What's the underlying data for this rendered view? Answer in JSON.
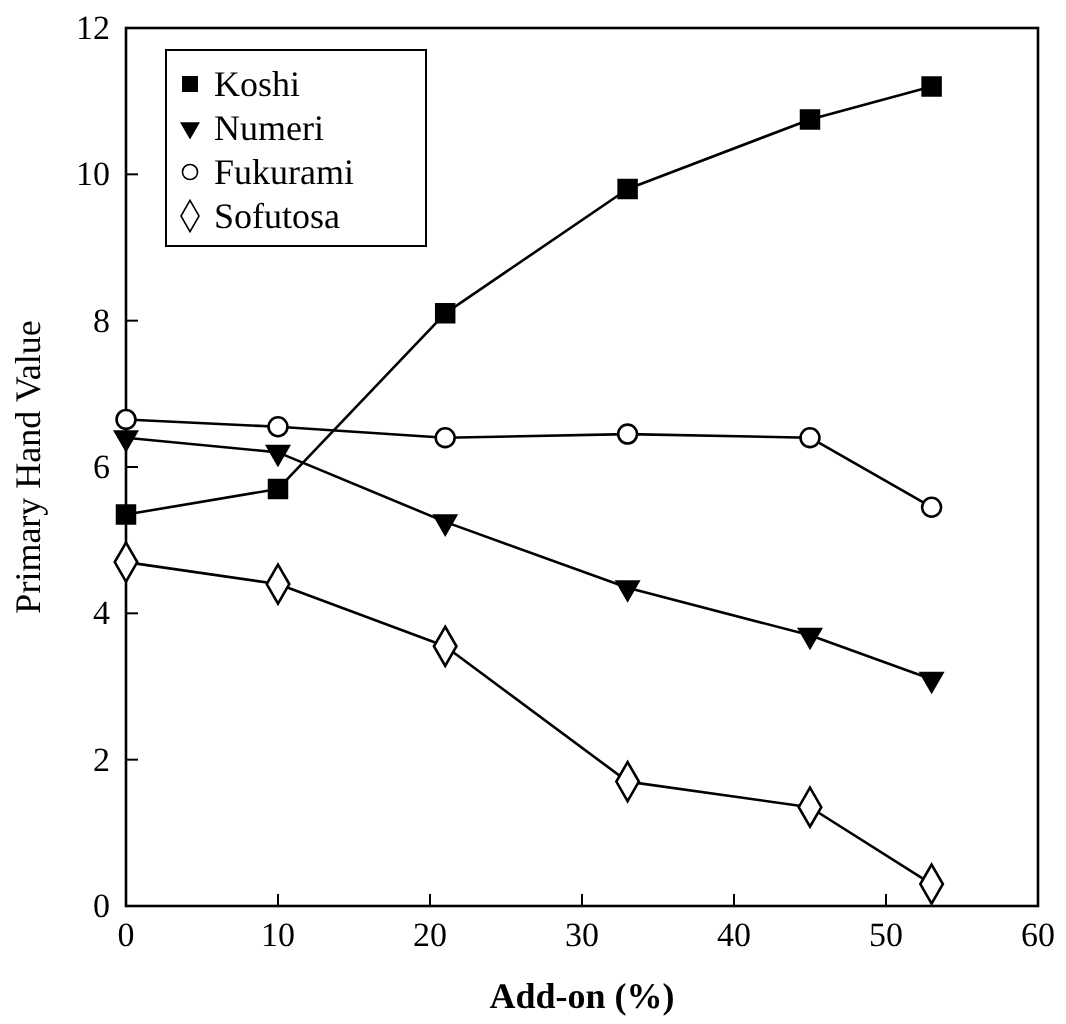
{
  "chart_data": {
    "type": "line",
    "xlabel": "Add-on (%)",
    "ylabel": "Primary Hand Value",
    "x": [
      0,
      10,
      21,
      33,
      45,
      53
    ],
    "xlim": [
      0,
      60
    ],
    "xticks": [
      0,
      10,
      20,
      30,
      40,
      50,
      60
    ],
    "ylim": [
      0,
      12
    ],
    "yticks": [
      0,
      2,
      4,
      6,
      8,
      10,
      12
    ],
    "legend": "top left",
    "grid": false,
    "line_style": "solid",
    "series": [
      {
        "name": "Koshi",
        "color": "#000000",
        "marker": "square",
        "values": [
          5.35,
          5.7,
          8.1,
          9.8,
          10.75,
          11.2
        ]
      },
      {
        "name": "Numeri",
        "color": "#000000",
        "marker": "triangle-down",
        "values": [
          6.4,
          6.2,
          5.25,
          4.35,
          3.7,
          3.1
        ]
      },
      {
        "name": "Fukurami",
        "color": "#000000",
        "marker": "circle",
        "values": [
          6.65,
          6.55,
          6.4,
          6.45,
          6.4,
          5.45
        ]
      },
      {
        "name": "Sofutosa",
        "color": "#000000",
        "marker": "diamond",
        "values": [
          4.7,
          4.4,
          3.55,
          1.7,
          1.35,
          0.3
        ]
      }
    ]
  }
}
